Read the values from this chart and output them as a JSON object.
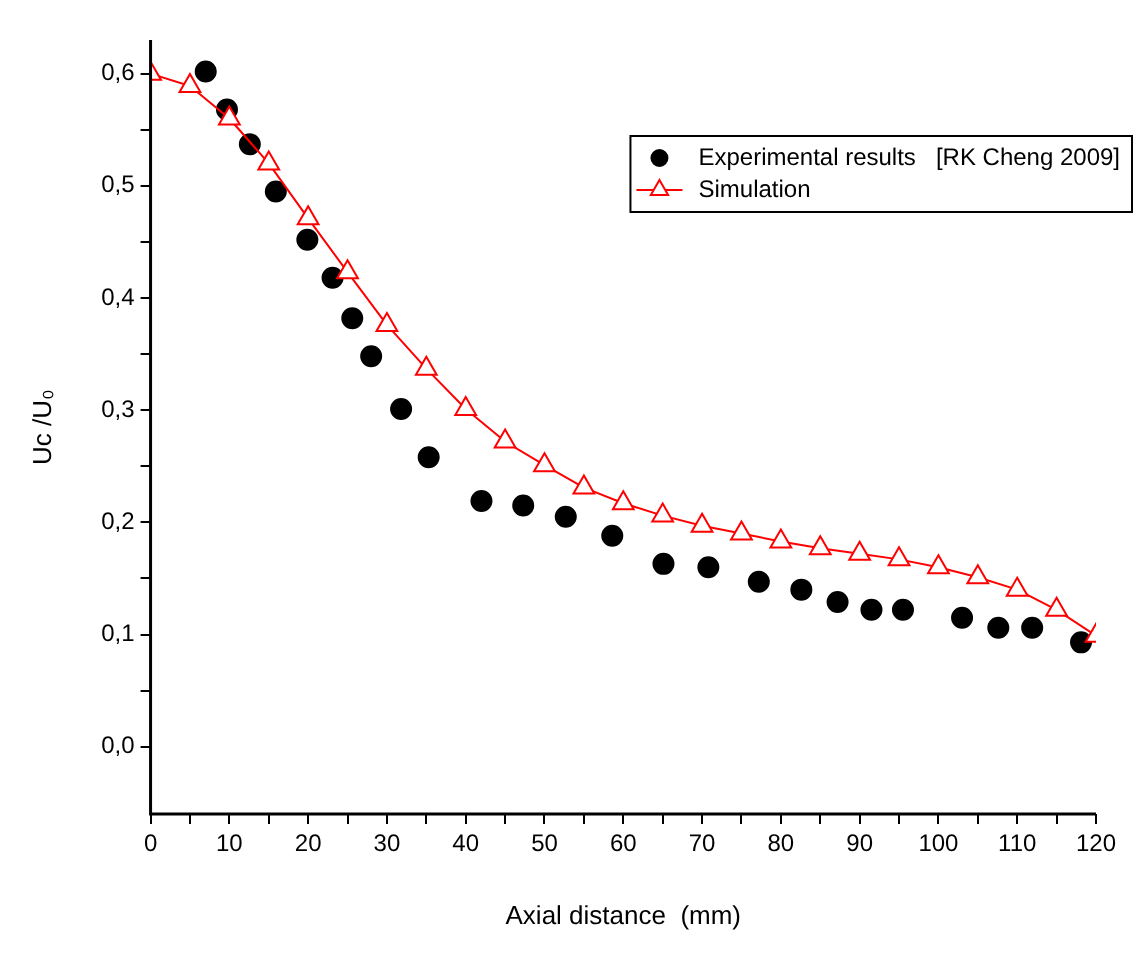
{
  "chart_data": {
    "type": "scatter",
    "xlabel": "Axial distance  (mm)",
    "ylabel": "Uc /U₀",
    "xlim": [
      0,
      120
    ],
    "ylim": [
      -0.06,
      0.63
    ],
    "xticks": [
      0,
      {
        "value": 5,
        "label": null
      },
      10,
      {
        "value": 15,
        "label": null
      },
      20,
      {
        "value": 25,
        "label": null
      },
      30,
      {
        "value": 35,
        "label": null
      },
      40,
      {
        "value": 45,
        "label": null
      },
      50,
      {
        "value": 55,
        "label": null
      },
      60,
      {
        "value": 65,
        "label": null
      },
      70,
      {
        "value": 75,
        "label": null
      },
      80,
      {
        "value": 85,
        "label": null
      },
      90,
      {
        "value": 95,
        "label": null
      },
      100,
      {
        "value": 105,
        "label": null
      },
      110,
      {
        "value": 115,
        "label": null
      },
      120
    ],
    "yticks": [
      {
        "value": 0,
        "label": "0,0"
      },
      {
        "value": 0.05,
        "label": null
      },
      {
        "value": 0.1,
        "label": "0,1"
      },
      {
        "value": 0.15,
        "label": null
      },
      {
        "value": 0.2,
        "label": "0,2"
      },
      {
        "value": 0.25,
        "label": null
      },
      {
        "value": 0.3,
        "label": "0,3"
      },
      {
        "value": 0.35,
        "label": null
      },
      {
        "value": 0.4,
        "label": "0,4"
      },
      {
        "value": 0.45,
        "label": null
      },
      {
        "value": 0.5,
        "label": "0,5"
      },
      {
        "value": 0.55,
        "label": null
      },
      {
        "value": 0.6,
        "label": "0,6"
      }
    ],
    "grid": false,
    "legend": "top right",
    "series": [
      {
        "name": "Experimental results   [RK Cheng 2009]",
        "marker": "circle",
        "color": "#000000",
        "x": [
          7.0,
          9.7,
          12.6,
          15.9,
          19.9,
          23.1,
          25.6,
          28.0,
          31.8,
          35.3,
          42.0,
          47.3,
          52.7,
          58.6,
          65.1,
          70.8,
          77.2,
          82.6,
          87.2,
          91.5,
          95.5,
          103.0,
          107.6,
          111.9,
          118.1
        ],
        "values": [
          0.602,
          0.568,
          0.537,
          0.495,
          0.452,
          0.418,
          0.382,
          0.348,
          0.301,
          0.258,
          0.219,
          0.215,
          0.205,
          0.188,
          0.163,
          0.16,
          0.147,
          0.14,
          0.129,
          0.122,
          0.122,
          0.115,
          0.106,
          0.106,
          0.093
        ]
      },
      {
        "name": "Simulation",
        "type": "line",
        "marker": "triangle",
        "line_style": "solid",
        "color": "#ff0000",
        "x": [
          0,
          5,
          10,
          15,
          20,
          25,
          30,
          35,
          40,
          45,
          50,
          55,
          60,
          65,
          70,
          75,
          80,
          85,
          90,
          95,
          100,
          105,
          110,
          115,
          120
        ],
        "values": [
          0.6,
          0.589,
          0.56,
          0.52,
          0.471,
          0.423,
          0.376,
          0.337,
          0.301,
          0.272,
          0.251,
          0.231,
          0.217,
          0.206,
          0.197,
          0.19,
          0.183,
          0.177,
          0.172,
          0.167,
          0.16,
          0.151,
          0.14,
          0.122,
          0.099
        ]
      }
    ]
  }
}
